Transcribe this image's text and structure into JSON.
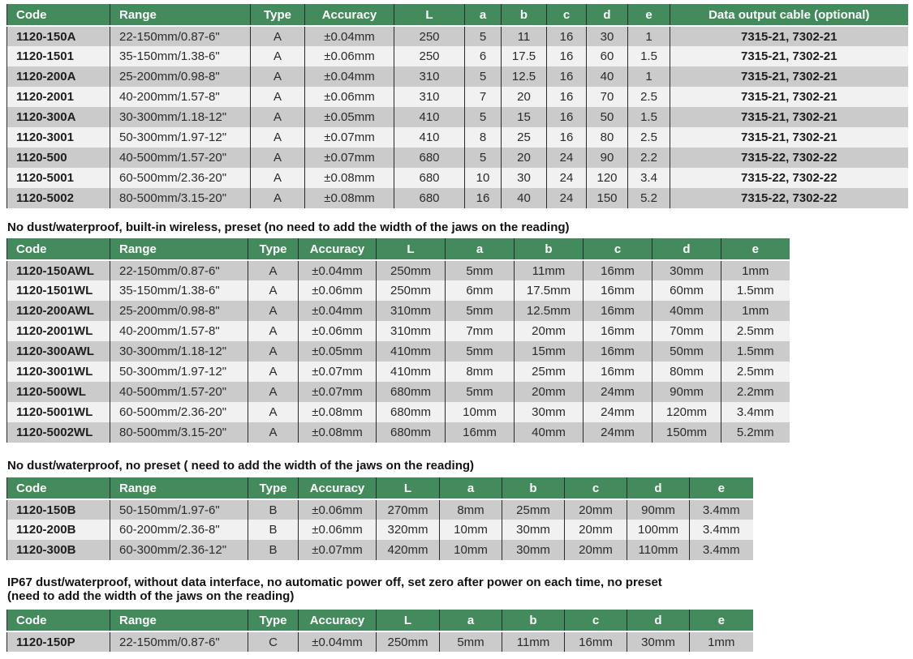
{
  "colors": {
    "table_header_green": "#438b5c",
    "row_shade_dark": "#cbcbcb",
    "row_shade_light": "#f1f1f1",
    "divider_line": "#2b2b2b",
    "header_text": "#ffffff",
    "body_text": "#2a2a2a"
  },
  "sections": [
    {
      "heading_lines": [],
      "table": {
        "columns": [
          "Code",
          "Range",
          "Type",
          "Accuracy",
          "L",
          "a",
          "b",
          "c",
          "d",
          "e",
          "Data output cable (optional)"
        ],
        "bold_cols": [
          0,
          10
        ],
        "rows": [
          [
            "1120-150A",
            "22-150mm/0.87-6\"",
            "A",
            "±0.04mm",
            "250",
            "5",
            "11",
            "16",
            "30",
            "1",
            "7315-21, 7302-21"
          ],
          [
            "1120-1501",
            "35-150mm/1.38-6\"",
            "A",
            "±0.06mm",
            "250",
            "6",
            "17.5",
            "16",
            "60",
            "1.5",
            "7315-21, 7302-21"
          ],
          [
            "1120-200A",
            "25-200mm/0.98-8\"",
            "A",
            "±0.04mm",
            "310",
            "5",
            "12.5",
            "16",
            "40",
            "1",
            "7315-21, 7302-21"
          ],
          [
            "1120-2001",
            "40-200mm/1.57-8\"",
            "A",
            "±0.06mm",
            "310",
            "7",
            "20",
            "16",
            "70",
            "2.5",
            "7315-21, 7302-21"
          ],
          [
            "1120-300A",
            "30-300mm/1.18-12\"",
            "A",
            "±0.05mm",
            "410",
            "5",
            "15",
            "16",
            "50",
            "1.5",
            "7315-21, 7302-21"
          ],
          [
            "1120-3001",
            "50-300mm/1.97-12\"",
            "A",
            "±0.07mm",
            "410",
            "8",
            "25",
            "16",
            "80",
            "2.5",
            "7315-21, 7302-21"
          ],
          [
            "1120-500",
            "40-500mm/1.57-20\"",
            "A",
            "±0.07mm",
            "680",
            "5",
            "20",
            "24",
            "90",
            "2.2",
            "7315-22, 7302-22"
          ],
          [
            "1120-5001",
            "60-500mm/2.36-20\"",
            "A",
            "±0.08mm",
            "680",
            "10",
            "30",
            "24",
            "120",
            "3.4",
            "7315-22, 7302-22"
          ],
          [
            "1120-5002",
            "80-500mm/3.15-20\"",
            "A",
            "±0.08mm",
            "680",
            "16",
            "40",
            "24",
            "150",
            "5.2",
            "7315-22, 7302-22"
          ]
        ]
      }
    },
    {
      "heading_lines": [
        "No dust/waterproof, built-in wireless, preset (no need to add the width of the jaws on the reading)"
      ],
      "table": {
        "columns": [
          "Code",
          "Range",
          "Type",
          "Accuracy",
          "L",
          "a",
          "b",
          "c",
          "d",
          "e"
        ],
        "bold_cols": [
          0
        ],
        "rows": [
          [
            "1120-150AWL",
            "22-150mm/0.87-6\"",
            "A",
            "±0.04mm",
            "250mm",
            "5mm",
            "11mm",
            "16mm",
            "30mm",
            "1mm"
          ],
          [
            "1120-1501WL",
            "35-150mm/1.38-6\"",
            "A",
            "±0.06mm",
            "250mm",
            "6mm",
            "17.5mm",
            "16mm",
            "60mm",
            "1.5mm"
          ],
          [
            "1120-200AWL",
            "25-200mm/0.98-8\"",
            "A",
            "±0.04mm",
            "310mm",
            "5mm",
            "12.5mm",
            "16mm",
            "40mm",
            "1mm"
          ],
          [
            "1120-2001WL",
            "40-200mm/1.57-8\"",
            "A",
            "±0.06mm",
            "310mm",
            "7mm",
            "20mm",
            "16mm",
            "70mm",
            "2.5mm"
          ],
          [
            "1120-300AWL",
            "30-300mm/1.18-12\"",
            "A",
            "±0.05mm",
            "410mm",
            "5mm",
            "15mm",
            "16mm",
            "50mm",
            "1.5mm"
          ],
          [
            "1120-3001WL",
            "50-300mm/1.97-12\"",
            "A",
            "±0.07mm",
            "410mm",
            "8mm",
            "25mm",
            "16mm",
            "80mm",
            "2.5mm"
          ],
          [
            "1120-500WL",
            "40-500mm/1.57-20\"",
            "A",
            "±0.07mm",
            "680mm",
            "5mm",
            "20mm",
            "24mm",
            "90mm",
            "2.2mm"
          ],
          [
            "1120-5001WL",
            "60-500mm/2.36-20\"",
            "A",
            "±0.08mm",
            "680mm",
            "10mm",
            "30mm",
            "24mm",
            "120mm",
            "3.4mm"
          ],
          [
            "1120-5002WL",
            "80-500mm/3.15-20\"",
            "A",
            "±0.08mm",
            "680mm",
            "16mm",
            "40mm",
            "24mm",
            "150mm",
            "5.2mm"
          ]
        ]
      }
    },
    {
      "heading_lines": [
        "No dust/waterproof, no preset ( need to add the width of the jaws on the reading)"
      ],
      "table": {
        "columns": [
          "Code",
          "Range",
          "Type",
          "Accuracy",
          "L",
          "a",
          "b",
          "c",
          "d",
          "e"
        ],
        "bold_cols": [
          0
        ],
        "rows": [
          [
            "1120-150B",
            "50-150mm/1.97-6\"",
            "B",
            "±0.06mm",
            "270mm",
            "8mm",
            "25mm",
            "20mm",
            "90mm",
            "3.4mm"
          ],
          [
            "1120-200B",
            "60-200mm/2.36-8\"",
            "B",
            "±0.06mm",
            "320mm",
            "10mm",
            "30mm",
            "20mm",
            "100mm",
            "3.4mm"
          ],
          [
            "1120-300B",
            "60-300mm/2.36-12\"",
            "B",
            "±0.07mm",
            "420mm",
            "10mm",
            "30mm",
            "20mm",
            "110mm",
            "3.4mm"
          ]
        ]
      }
    },
    {
      "heading_lines": [
        "IP67 dust/waterproof, without data interface, no automatic power off, set zero after power on each time, no preset",
        "(need to add the width of the jaws on the reading)"
      ],
      "table": {
        "columns": [
          "Code",
          "Range",
          "Type",
          "Accuracy",
          "L",
          "a",
          "b",
          "c",
          "d",
          "e"
        ],
        "bold_cols": [
          0
        ],
        "rows": [
          [
            "1120-150P",
            "22-150mm/0.87-6\"",
            "C",
            "±0.04mm",
            "250mm",
            "5mm",
            "11mm",
            "16mm",
            "30mm",
            "1mm"
          ]
        ]
      }
    }
  ]
}
